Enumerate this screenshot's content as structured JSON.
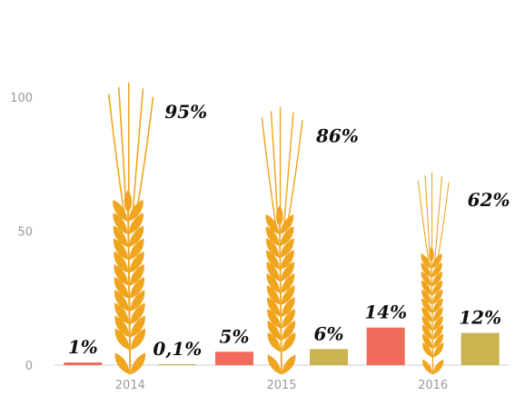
{
  "chart_data": {
    "type": "bar",
    "categories": [
      "2014",
      "2015",
      "2016"
    ],
    "series": [
      {
        "values": [
          1,
          5,
          14
        ],
        "labels": [
          "1%",
          "5%",
          "14%"
        ],
        "color": "#f06b5a"
      },
      {
        "values": [
          95,
          86,
          62
        ],
        "labels": [
          "95%",
          "86%",
          "62%"
        ],
        "color": "#f0a51e",
        "mark": "wheat-ear"
      },
      {
        "values": [
          0.1,
          6,
          12
        ],
        "labels": [
          "0,1%",
          "6%",
          "12%"
        ],
        "color": "#cdb34e"
      }
    ],
    "yticks": [
      {
        "value": 0,
        "label": "0"
      },
      {
        "value": 50,
        "label": "50"
      },
      {
        "value": 100,
        "label": "100"
      }
    ],
    "ylim": [
      0,
      100
    ],
    "grid": false,
    "legend": "none",
    "title": "",
    "xlabel": "",
    "ylabel": ""
  }
}
